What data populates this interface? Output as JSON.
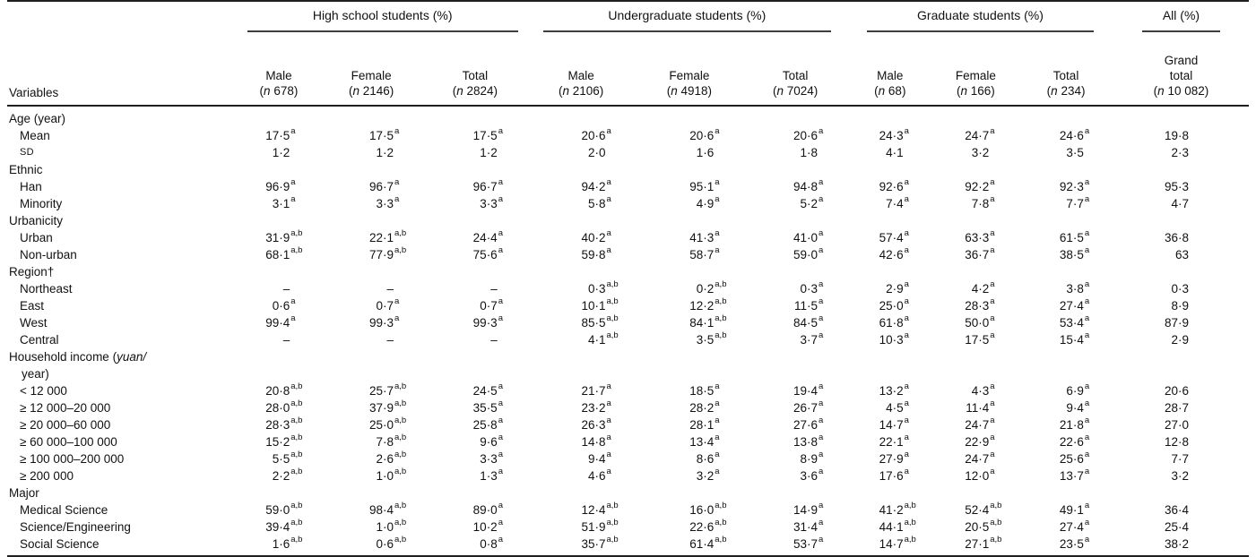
{
  "table": {
    "variables_header": "Variables",
    "groups": [
      {
        "label": "High school students (%)",
        "span": 3,
        "cls": "g-hs"
      },
      {
        "label": "Undergraduate students (%)",
        "span": 3,
        "cls": "g-ug"
      },
      {
        "label": "Graduate students (%)",
        "span": 3,
        "cls": "g-grad"
      },
      {
        "label": "All (%)",
        "span": 1,
        "cls": "g-all"
      }
    ],
    "columns": [
      {
        "label": "Male",
        "n": "678"
      },
      {
        "label": "Female",
        "n": "2146"
      },
      {
        "label": "Total",
        "n": "2824"
      },
      {
        "label": "Male",
        "n": "2106"
      },
      {
        "label": "Female",
        "n": "4918"
      },
      {
        "label": "Total",
        "n": "7024"
      },
      {
        "label": "Male",
        "n": "68"
      },
      {
        "label": "Female",
        "n": "166"
      },
      {
        "label": "Total",
        "n": "234"
      },
      {
        "label": "Grand\ntotal",
        "n": "10 082"
      }
    ],
    "rows": [
      {
        "type": "section",
        "label": "Age (year)"
      },
      {
        "type": "data",
        "label": "Mean",
        "values": [
          "17·5^a",
          "17·5^a",
          "17·5^a",
          "20·6^a",
          "20·6^a",
          "20·6^a",
          "24·3^a",
          "24·7^a",
          "24·6^a",
          "19·8"
        ]
      },
      {
        "type": "data",
        "label": "SD",
        "style": "smallcaps",
        "values": [
          "1·2",
          "1·2",
          "1·2",
          "2·0",
          "1·6",
          "1·8",
          "4·1",
          "3·2",
          "3·5",
          "2·3"
        ]
      },
      {
        "type": "section",
        "label": "Ethnic"
      },
      {
        "type": "data",
        "label": "Han",
        "values": [
          "96·9^a",
          "96·7^a",
          "96·7^a",
          "94·2^a",
          "95·1^a",
          "94·8^a",
          "92·6^a",
          "92·2^a",
          "92·3^a",
          "95·3"
        ]
      },
      {
        "type": "data",
        "label": "Minority",
        "values": [
          "3·1^a",
          "3·3^a",
          "3·3^a",
          "5·8^a",
          "4·9^a",
          "5·2^a",
          "7·4^a",
          "7·8^a",
          "7·7^a",
          "4·7"
        ]
      },
      {
        "type": "section",
        "label": "Urbanicity"
      },
      {
        "type": "data",
        "label": "Urban",
        "values": [
          "31·9^a,b",
          "22·1^a,b",
          "24·4^a",
          "40·2^a",
          "41·3^a",
          "41·0^a",
          "57·4^a",
          "63·3^a",
          "61·5^a",
          "36·8"
        ]
      },
      {
        "type": "data",
        "label": "Non-urban",
        "values": [
          "68·1^a,b",
          "77·9^a,b",
          "75·6^a",
          "59·8^a",
          "58·7^a",
          "59·0^a",
          "42·6^a",
          "36·7^a",
          "38·5^a",
          "63"
        ]
      },
      {
        "type": "section",
        "label": "Region†"
      },
      {
        "type": "data",
        "label": "Northeast",
        "values": [
          "–",
          "–",
          "–",
          "0·3^a,b",
          "0·2^a,b",
          "0·3^a",
          "2·9^a",
          "4·2^a",
          "3·8^a",
          "0·3"
        ]
      },
      {
        "type": "data",
        "label": "East",
        "values": [
          "0·6^a",
          "0·7^a",
          "0·7^a",
          "10·1^a,b",
          "12·2^a,b",
          "11·5^a",
          "25·0^a",
          "28·3^a",
          "27·4^a",
          "8·9"
        ]
      },
      {
        "type": "data",
        "label": "West",
        "values": [
          "99·4^a",
          "99·3^a",
          "99·3^a",
          "85·5^a,b",
          "84·1^a,b",
          "84·5^a",
          "61·8^a",
          "50·0^a",
          "53·4^a",
          "87·9"
        ]
      },
      {
        "type": "data",
        "label": "Central",
        "values": [
          "–",
          "–",
          "–",
          "4·1^a,b",
          "3·5^a,b",
          "3·7^a",
          "10·3^a",
          "17·5^a",
          "15·4^a",
          "2·9"
        ]
      },
      {
        "type": "section",
        "label": "Household income (",
        "label_italic": "yuan/",
        "label2": "year)"
      },
      {
        "type": "data",
        "label": "< 12 000",
        "values": [
          "20·8^a,b",
          "25·7^a,b",
          "24·5^a",
          "21·7^a",
          "18·5^a",
          "19·4^a",
          "13·2^a",
          "4·3^a",
          "6·9^a",
          "20·6"
        ]
      },
      {
        "type": "data",
        "label": "≥ 12 000–20 000",
        "values": [
          "28·0^a,b",
          "37·9^a,b",
          "35·5^a",
          "23·2^a",
          "28·2^a",
          "26·7^a",
          "4·5^a",
          "11·4^a",
          "9·4^a",
          "28·7"
        ]
      },
      {
        "type": "data",
        "label": "≥ 20 000–60 000",
        "values": [
          "28·3^a,b",
          "25·0^a,b",
          "25·8^a",
          "26·3^a",
          "28·1^a",
          "27·6^a",
          "14·7^a",
          "24·7^a",
          "21·8^a",
          "27·0"
        ]
      },
      {
        "type": "data",
        "label": "≥ 60 000–100 000",
        "values": [
          "15·2^a,b",
          "7·8^a,b",
          "9·6^a",
          "14·8^a",
          "13·4^a",
          "13·8^a",
          "22·1^a",
          "22·9^a",
          "22·6^a",
          "12·8"
        ]
      },
      {
        "type": "data",
        "label": "≥ 100 000–200 000",
        "values": [
          "5·5^a,b",
          "2·6^a,b",
          "3·3^a",
          "9·4^a",
          "8·6^a",
          "8·9^a",
          "27·9^a",
          "24·7^a",
          "25·6^a",
          "7·7"
        ]
      },
      {
        "type": "data",
        "label": "≥ 200 000",
        "values": [
          "2·2^a,b",
          "1·0^a,b",
          "1·3^a",
          "4·6^a",
          "3·2^a",
          "3·6^a",
          "17·6^a",
          "12·0^a",
          "13·7^a",
          "3·2"
        ]
      },
      {
        "type": "section",
        "label": "Major"
      },
      {
        "type": "data",
        "label": "Medical Science",
        "values": [
          "59·0^a,b",
          "98·4^a,b",
          "89·0^a",
          "12·4^a,b",
          "16·0^a,b",
          "14·9^a",
          "41·2^a,b",
          "52·4^a,b",
          "49·1^a",
          "36·4"
        ]
      },
      {
        "type": "data",
        "label": "Science/Engineering",
        "values": [
          "39·4^a,b",
          "1·0^a,b",
          "10·2^a",
          "51·9^a,b",
          "22·6^a,b",
          "31·4^a",
          "44·1^a,b",
          "20·5^a,b",
          "27·4^a",
          "25·4"
        ]
      },
      {
        "type": "data",
        "label": "Social Science",
        "values": [
          "1·6^a,b",
          "0·6^a,b",
          "0·8^a",
          "35·7^a,b",
          "61·4^a,b",
          "53·7^a",
          "14·7^a,b",
          "27·1^a,b",
          "23·5^a",
          "38·2"
        ]
      }
    ]
  }
}
